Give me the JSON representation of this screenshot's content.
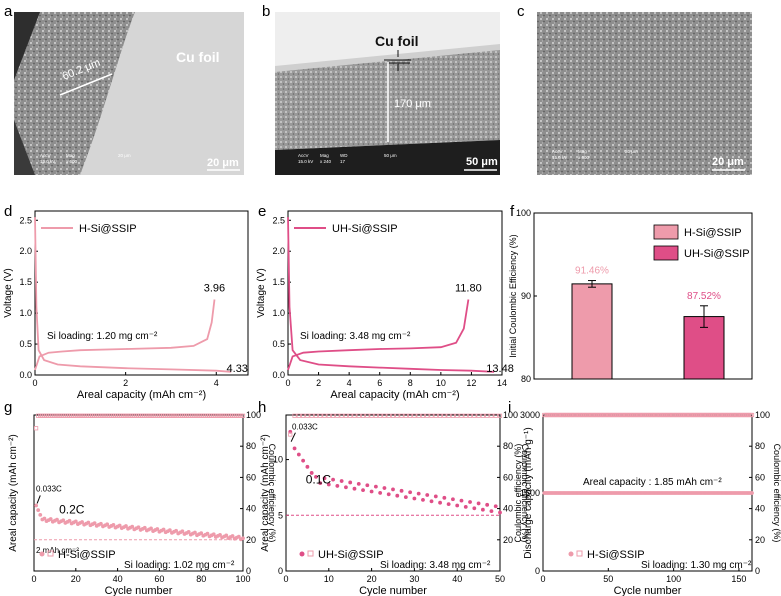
{
  "panel_letters": [
    "a",
    "b",
    "c",
    "d",
    "e",
    "f",
    "g",
    "h",
    "i"
  ],
  "sem": {
    "a": {
      "thickness": "60.2 μm",
      "foil": "Cu foil",
      "scale": "20 μm",
      "meta": [
        "AccV",
        "Mag",
        "15.0 kV",
        "x 600",
        "20 μm"
      ]
    },
    "b": {
      "foil": "Cu foil",
      "thickness": "170 μm",
      "scale": "50 μm",
      "meta": [
        "AccV",
        "Mag",
        "WD",
        "15.0 kV",
        "x 240",
        "17",
        "50 μm"
      ]
    },
    "c": {
      "scale": "20 μm",
      "meta": [
        "AccV",
        "Mag",
        "15.0 kV",
        "x 600",
        "20 μm"
      ]
    }
  },
  "colors": {
    "light": "#ee9bab",
    "dark": "#df4e87",
    "sem_bg": "#8a8a8a",
    "foil": "#d4d4d4"
  },
  "chart_data": [
    {
      "panel": "d",
      "type": "line",
      "xlabel": "Areal capacity (mAh cm⁻²)",
      "ylabel": "Voltage (V)",
      "xlim": [
        0,
        4.7
      ],
      "ylim": [
        0,
        2.65
      ],
      "xticks": [
        "0",
        "2",
        "4"
      ],
      "yticks": [
        "0.0",
        "0.5",
        "1.0",
        "1.5",
        "2.0",
        "2.5"
      ],
      "legend": "H-Si@SSIP",
      "annotation": "Si loading: 1.20 mg cm⁻²",
      "labels": [
        "3.96",
        "4.33"
      ],
      "series": [
        {
          "name": "discharge",
          "x": [
            0,
            0.03,
            0.08,
            0.2,
            0.5,
            1,
            2,
            3,
            4,
            4.33
          ],
          "y": [
            2.55,
            1.1,
            0.4,
            0.24,
            0.17,
            0.14,
            0.11,
            0.09,
            0.07,
            0.05
          ]
        },
        {
          "name": "charge",
          "x": [
            0,
            0.1,
            0.3,
            0.6,
            1,
            2,
            3,
            3.5,
            3.8,
            3.9,
            3.96
          ],
          "y": [
            0.08,
            0.3,
            0.36,
            0.38,
            0.4,
            0.42,
            0.44,
            0.47,
            0.58,
            0.85,
            1.22
          ]
        }
      ]
    },
    {
      "panel": "e",
      "type": "line",
      "xlabel": "Areal capacity (mAh cm⁻²)",
      "ylabel": "Voltage (V)",
      "xlim": [
        0,
        14
      ],
      "ylim": [
        0,
        2.65
      ],
      "xticks": [
        "0",
        "2",
        "4",
        "6",
        "8",
        "10",
        "12",
        "14"
      ],
      "yticks": [
        "0.0",
        "0.5",
        "1.0",
        "1.5",
        "2.0",
        "2.5"
      ],
      "legend": "UH-Si@SSIP",
      "annotation": "Si loading: 3.48 mg cm⁻²",
      "labels": [
        "11.80",
        "13.48"
      ],
      "series": [
        {
          "name": "discharge",
          "x": [
            0,
            0.1,
            0.3,
            0.8,
            2,
            4,
            6,
            8,
            10,
            12,
            13.48
          ],
          "y": [
            2.55,
            1.1,
            0.4,
            0.24,
            0.17,
            0.14,
            0.12,
            0.1,
            0.08,
            0.07,
            0.05
          ]
        },
        {
          "name": "charge",
          "x": [
            0,
            0.3,
            1,
            2,
            4,
            6,
            8,
            10,
            11,
            11.5,
            11.8
          ],
          "y": [
            0.08,
            0.3,
            0.36,
            0.38,
            0.4,
            0.42,
            0.43,
            0.45,
            0.52,
            0.75,
            1.22
          ]
        }
      ]
    },
    {
      "panel": "f",
      "type": "bar",
      "ylabel": "Initial Coulombic Efficiency (%)",
      "ylim": [
        80,
        100
      ],
      "yticks": [
        "80",
        "90",
        "100"
      ],
      "categories": [
        "H-Si@SSIP",
        "UH-Si@SSIP"
      ],
      "values": [
        91.46,
        87.52
      ],
      "errors": [
        0.4,
        1.3
      ],
      "value_labels": [
        "91.46%",
        "87.52%"
      ]
    },
    {
      "panel": "g",
      "type": "scatter",
      "xlabel": "Cycle number",
      "ylabel": "Areal capacity (mAh cm⁻²)",
      "y2label": "Coulombic efficiency (%)",
      "xlim": [
        0,
        100
      ],
      "ylim": [
        0,
        10
      ],
      "y2lim": [
        0,
        100
      ],
      "xticks": [
        "0",
        "20",
        "40",
        "60",
        "80",
        "100"
      ],
      "y2ticks": [
        "0",
        "20",
        "40",
        "60",
        "80",
        "100"
      ],
      "legend": "H-Si@SSIP",
      "annotation": "Si loading: 1.02 mg cm⁻²",
      "rate_labels": [
        "0.033C",
        "0.2C"
      ],
      "ref_label": "2 mAh cm⁻²",
      "ref_value": 2,
      "capacity_start": 4.2,
      "capacity_plateau": 3.3,
      "capacity_end": 2.1,
      "ce_first": 91.5,
      "ce_steady": 99.5
    },
    {
      "panel": "h",
      "type": "scatter",
      "xlabel": "Cycle number",
      "ylabel": "Areal capacity (mAh cm⁻²)",
      "y2label": "Coulombic efficiency (%)",
      "xlim": [
        0,
        50
      ],
      "ylim": [
        0,
        14
      ],
      "y2lim": [
        0,
        100
      ],
      "xticks": [
        "0",
        "10",
        "20",
        "30",
        "40",
        "50"
      ],
      "yticks": [
        "0",
        "5",
        "10"
      ],
      "y2ticks": [
        "20",
        "40",
        "60",
        "80",
        "100"
      ],
      "legend": "UH-Si@SSIP",
      "annotation": "Si loading: 3.48 mg cm⁻²",
      "rate_labels": [
        "0.033C",
        "0.1C"
      ],
      "capacity_start": 12.5,
      "capacity_mid": 8.2,
      "capacity_end": 5.5,
      "ref_value": 5,
      "ce_first": 87.5,
      "ce_steady": 99.5
    },
    {
      "panel": "i",
      "type": "scatter",
      "xlabel": "Cycle number",
      "ylabel": "Discharge capacity (mAh g⁻¹)",
      "y2label": "Coulombic efficiency (%)",
      "y2label_left": "Coulombic efficiency (%)",
      "xlim": [
        0,
        160
      ],
      "ylim": [
        0,
        3000
      ],
      "y2lim": [
        0,
        100
      ],
      "xticks": [
        "0",
        "50",
        "100",
        "150"
      ],
      "yticks": [
        "0",
        "1500",
        "3000"
      ],
      "y2ticks": [
        "0",
        "20",
        "40",
        "60",
        "80",
        "100"
      ],
      "legend": "H-Si@SSIP",
      "annotation": "Areal capacity : 1.85 mAh cm⁻²",
      "loading": "Si loading: 1.30 mg cm⁻²",
      "capacity": 1500,
      "ce": 100
    }
  ]
}
